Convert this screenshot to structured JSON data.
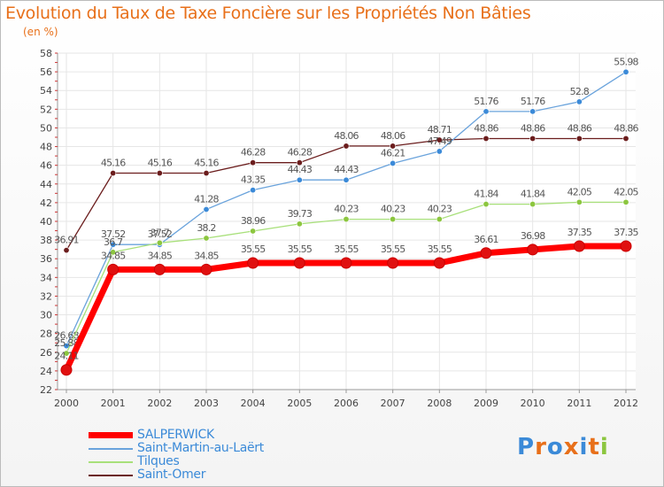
{
  "header": {
    "title": "Evolution du Taux de Taxe Foncière sur les Propriétés Non Bâties",
    "unit": "(en %)"
  },
  "logo": {
    "text": "Proxiti",
    "colors": [
      "#3b8ad8",
      "#e8701a",
      "#3b8ad8",
      "#e8701a",
      "#3b8ad8",
      "#e8701a",
      "#8cc63f"
    ]
  },
  "chart_data": {
    "type": "line",
    "x": [
      "2000",
      "2001",
      "2002",
      "2003",
      "2004",
      "2005",
      "2006",
      "2007",
      "2008",
      "2009",
      "2010",
      "2011",
      "2012"
    ],
    "ylim": [
      22,
      58
    ],
    "yticks": [
      22,
      24,
      26,
      28,
      30,
      32,
      34,
      36,
      38,
      40,
      42,
      44,
      46,
      48,
      50,
      52,
      54,
      56,
      58
    ],
    "grid": true,
    "legend_position": "bottom-left",
    "series": [
      {
        "name": "Saint-Omer",
        "color": "#6b1d1d",
        "marker": "#6b1d1d",
        "width": 1.3,
        "values": [
          36.91,
          45.16,
          45.16,
          45.16,
          46.28,
          46.28,
          48.06,
          48.06,
          48.71,
          48.86,
          48.86,
          48.86,
          48.86
        ],
        "labels": [
          "36.91",
          "45.16",
          "45.16",
          "45.16",
          "46.28",
          "46.28",
          "48.06",
          "48.06",
          "48.71",
          "48.86",
          "48.86",
          "48.86",
          "48.86"
        ]
      },
      {
        "name": "Saint-Martin-au-Laërt",
        "color": "#6aa3dc",
        "marker": "#3b8ad8",
        "width": 1.3,
        "values": [
          26.68,
          37.52,
          37.52,
          41.28,
          43.35,
          44.43,
          44.43,
          46.21,
          47.49,
          51.76,
          51.76,
          52.8,
          55.98
        ],
        "labels": [
          "26.68",
          "37.52",
          "37.52",
          "41.28",
          "43.35",
          "44.43",
          "44.43",
          "46.21",
          "47.49",
          "51.76",
          "51.76",
          "52.8",
          "55.98"
        ]
      },
      {
        "name": "Tilques",
        "color": "#a8e07a",
        "marker": "#8cc63f",
        "width": 1.3,
        "values": [
          25.88,
          36.7,
          37.7,
          38.2,
          38.96,
          39.73,
          40.23,
          40.23,
          40.23,
          41.84,
          41.84,
          42.05,
          42.05
        ],
        "labels": [
          "25.88",
          "36.7",
          "37.7",
          "38.2",
          "38.96",
          "39.73",
          "40.23",
          "40.23",
          "40.23",
          "41.84",
          "41.84",
          "42.05",
          "42.05"
        ]
      },
      {
        "name": "SALPERWICK",
        "color": "#ff0000",
        "marker": "#e01010",
        "width": 7,
        "values": [
          24.11,
          34.85,
          34.85,
          34.85,
          35.55,
          35.55,
          35.55,
          35.55,
          35.55,
          36.61,
          36.98,
          37.35,
          37.35
        ],
        "labels": [
          "24.11",
          "34.85",
          "34.85",
          "34.85",
          "35.55",
          "35.55",
          "35.55",
          "35.55",
          "35.55",
          "36.61",
          "36.98",
          "37.35",
          "37.35"
        ]
      }
    ]
  },
  "legend": [
    {
      "label": "SALPERWICK",
      "color": "#ff0000"
    },
    {
      "label": "Saint-Martin-au-Laërt",
      "color": "#6aa3dc"
    },
    {
      "label": "Tilques",
      "color": "#a8e07a"
    },
    {
      "label": "Saint-Omer",
      "color": "#6b1d1d"
    }
  ]
}
